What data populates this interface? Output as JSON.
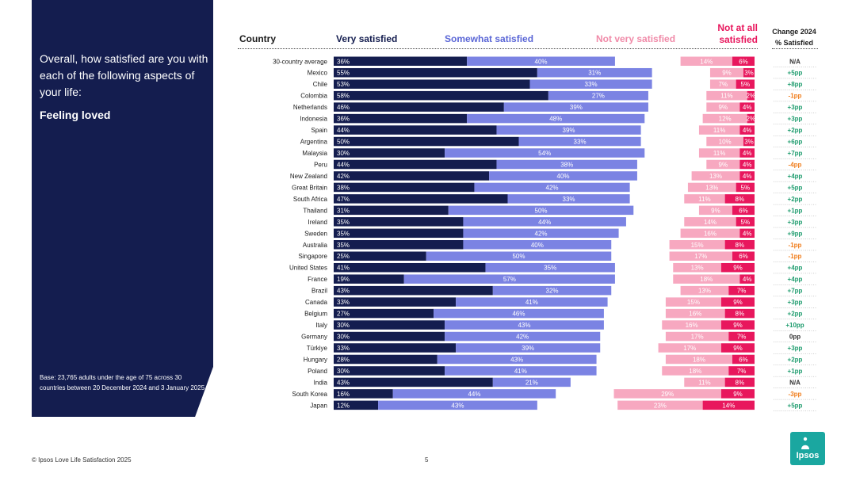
{
  "panel": {
    "question": "Overall, how satisfied are you with each of the following aspects of your life:",
    "aspect": "Feeling loved",
    "base": "Base: 23,765 adults under the age of 75 across 30 countries between 20 December 2024 and 3 January 2025"
  },
  "headers": {
    "country": "Country",
    "very": "Very satisfied",
    "somewhat": "Somewhat satisfied",
    "not_very": "Not very satisfied",
    "not_at_all_line1": "Not at all",
    "not_at_all_line2": "satisfied",
    "change_line1": "Change 2024",
    "change_line2": "% Satisfied"
  },
  "colors": {
    "very": "#141d4f",
    "somewhat": "#7b83e3",
    "not_very": "#f7a8c0",
    "not_at_all": "#e8175d",
    "change_pos": "#1e9c6e",
    "change_neg": "#f07d1c",
    "change_neutral": "#333333"
  },
  "chart_data": {
    "type": "bar",
    "stacked": true,
    "orientation": "horizontal",
    "categories": [
      "30-country average",
      "Mexico",
      "Chile",
      "Colombia",
      "Netherlands",
      "Indonesia",
      "Spain",
      "Argentina",
      "Malaysia",
      "Peru",
      "New Zealand",
      "Great Britain",
      "South Africa",
      "Thailand",
      "Ireland",
      "Sweden",
      "Australia",
      "Singapore",
      "United States",
      "France",
      "Brazil",
      "Canada",
      "Belgium",
      "Italy",
      "Germany",
      "Türkiye",
      "Hungary",
      "Poland",
      "India",
      "South Korea",
      "Japan"
    ],
    "series": [
      {
        "name": "Very satisfied",
        "values": [
          36,
          55,
          53,
          58,
          46,
          36,
          44,
          50,
          30,
          44,
          42,
          38,
          47,
          31,
          35,
          35,
          35,
          25,
          41,
          19,
          43,
          33,
          27,
          30,
          30,
          33,
          28,
          30,
          43,
          16,
          12
        ]
      },
      {
        "name": "Somewhat satisfied",
        "values": [
          40,
          31,
          33,
          27,
          39,
          48,
          39,
          33,
          54,
          38,
          40,
          42,
          33,
          50,
          44,
          42,
          40,
          50,
          35,
          57,
          32,
          41,
          46,
          43,
          42,
          39,
          43,
          41,
          21,
          44,
          43
        ]
      },
      {
        "name": "Not very satisfied",
        "values": [
          14,
          9,
          7,
          11,
          9,
          12,
          11,
          10,
          11,
          9,
          13,
          13,
          11,
          9,
          14,
          16,
          15,
          17,
          13,
          18,
          13,
          15,
          16,
          16,
          17,
          17,
          18,
          18,
          11,
          29,
          23
        ]
      },
      {
        "name": "Not at all satisfied",
        "values": [
          6,
          3,
          5,
          2,
          4,
          2,
          4,
          3,
          4,
          4,
          4,
          5,
          8,
          6,
          5,
          4,
          8,
          6,
          9,
          4,
          7,
          9,
          8,
          9,
          7,
          9,
          6,
          7,
          8,
          9,
          14
        ]
      }
    ],
    "change": [
      "N/A",
      "+5pp",
      "+8pp",
      "-1pp",
      "+3pp",
      "+3pp",
      "+2pp",
      "+6pp",
      "+7pp",
      "-4pp",
      "+4pp",
      "+5pp",
      "+2pp",
      "+1pp",
      "+3pp",
      "+9pp",
      "-1pp",
      "-1pp",
      "+4pp",
      "+4pp",
      "+7pp",
      "+3pp",
      "+2pp",
      "+10pp",
      "0pp",
      "+3pp",
      "+2pp",
      "+1pp",
      "N/A",
      "-3pp",
      "+5pp"
    ]
  },
  "footer": {
    "source": "© Ipsos Love Life Satisfaction 2025",
    "page": "5",
    "logo": "Ipsos"
  }
}
